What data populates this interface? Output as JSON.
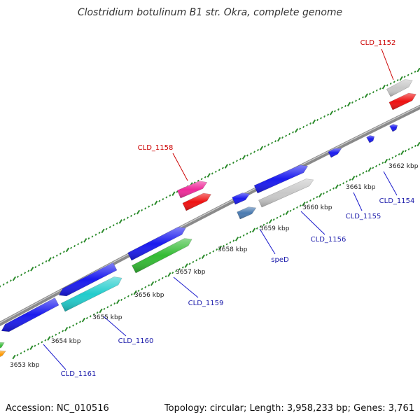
{
  "title": "Clostridium botulinum B1 str. Okra, complete genome",
  "footer": {
    "accession": "Accession: NC_010516",
    "topology": "Topology: circular; Length: 3,958,233 bp; Genes: 3,761"
  },
  "colors": {
    "backbone": "#8a8a8a",
    "tick": "#2a8a2a",
    "leader_blue": "#1a1acc",
    "leader_red": "#cc0000",
    "label_blue": "#1a1aaa",
    "label_red": "#cc0000"
  },
  "scale_labels": [
    {
      "text": "3653 kbp"
    },
    {
      "text": "3654 kbp"
    },
    {
      "text": "3655 kbp"
    },
    {
      "text": "3656 kbp"
    },
    {
      "text": "3657 kbp"
    },
    {
      "text": "3658 kbp"
    },
    {
      "text": "3659 kbp"
    },
    {
      "text": "3660 kbp"
    },
    {
      "text": "3661 kbp"
    },
    {
      "text": "3662 kbp"
    }
  ],
  "gene_labels": [
    {
      "text": "CLD_1152",
      "color": "red"
    },
    {
      "text": "CLD_1158",
      "color": "red"
    },
    {
      "text": "CLD_1154",
      "color": "blue"
    },
    {
      "text": "CLD_1155",
      "color": "blue"
    },
    {
      "text": "CLD_1156",
      "color": "blue"
    },
    {
      "text": "speD",
      "color": "blue"
    },
    {
      "text": "CLD_1159",
      "color": "blue"
    },
    {
      "text": "CLD_1160",
      "color": "blue"
    },
    {
      "text": "CLD_1161",
      "color": "blue"
    }
  ],
  "features": [
    {
      "name": "CLD_1152-a",
      "color": "#c8c8c8"
    },
    {
      "name": "CLD_1152-b",
      "color": "#ee1111"
    },
    {
      "name": "CLD_1154",
      "color": "#1a1aee"
    },
    {
      "name": "CLD_1155",
      "color": "#1a1aee"
    },
    {
      "name": "CLD_1153",
      "color": "#1a1aee"
    },
    {
      "name": "CLD_1156-a",
      "color": "#1a1aee"
    },
    {
      "name": "CLD_1156-b",
      "color": "#c8c8c8"
    },
    {
      "name": "speD-a",
      "color": "#1a1aee"
    },
    {
      "name": "speD-b",
      "color": "#4a7ab0"
    },
    {
      "name": "CLD_1158-a",
      "color": "#ee2a99"
    },
    {
      "name": "CLD_1158-b",
      "color": "#ee1111"
    },
    {
      "name": "CLD_1159-a",
      "color": "#1a1aee"
    },
    {
      "name": "CLD_1159-b",
      "color": "#33bb33"
    },
    {
      "name": "CLD_1160-a",
      "color": "#1a1aee"
    },
    {
      "name": "CLD_1160-b",
      "color": "#22cccc"
    },
    {
      "name": "CLD_1161",
      "color": "#1a1aee"
    },
    {
      "name": "edge-green",
      "color": "#33bb33"
    },
    {
      "name": "edge-orange",
      "color": "#ff9900"
    }
  ]
}
